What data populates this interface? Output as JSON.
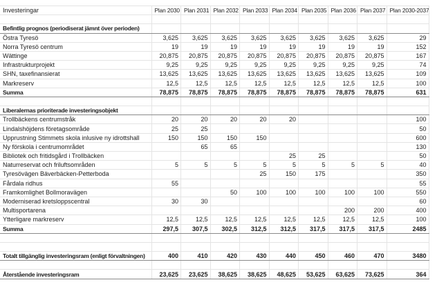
{
  "colors": {
    "bg": "#ffffff",
    "grid": "#e4e4e4",
    "border": "#8a8a8a",
    "text": "#1d1d1d"
  },
  "table": {
    "columns": [
      "Investeringar",
      "Plan 2030",
      "Plan 2031",
      "Plan 2032",
      "Plan 2033",
      "Plan 2034",
      "Plan 2035",
      "Plan 2036",
      "Plan 2037",
      "Plan 2030-2037"
    ],
    "rows": [
      {
        "style": "empty",
        "label": "",
        "values": [
          "",
          "",
          "",
          "",
          "",
          "",
          "",
          "",
          ""
        ]
      },
      {
        "style": "section",
        "label": "Befintlig prognos (periodiserat jämnt över perioden)",
        "values": [
          "",
          "",
          "",
          "",
          "",
          "",
          "",
          "",
          ""
        ]
      },
      {
        "style": "",
        "label": "Östra Tyresö",
        "values": [
          "3,625",
          "3,625",
          "3,625",
          "3,625",
          "3,625",
          "3,625",
          "3,625",
          "3,625",
          "29"
        ]
      },
      {
        "style": "",
        "label": "Norra Tyresö centrum",
        "values": [
          "19",
          "19",
          "19",
          "19",
          "19",
          "19",
          "19",
          "19",
          "152"
        ]
      },
      {
        "style": "",
        "label": "Wättinge",
        "values": [
          "20,875",
          "20,875",
          "20,875",
          "20,875",
          "20,875",
          "20,875",
          "20,875",
          "20,875",
          "167"
        ]
      },
      {
        "style": "",
        "label": "Infrastrukturprojekt",
        "values": [
          "9,25",
          "9,25",
          "9,25",
          "9,25",
          "9,25",
          "9,25",
          "9,25",
          "9,25",
          "74"
        ]
      },
      {
        "style": "",
        "label": "SHN, taxefinansierat",
        "values": [
          "13,625",
          "13,625",
          "13,625",
          "13,625",
          "13,625",
          "13,625",
          "13,625",
          "13,625",
          "109"
        ]
      },
      {
        "style": "",
        "label": "Markreserv",
        "values": [
          "12,5",
          "12,5",
          "12,5",
          "12,5",
          "12,5",
          "12,5",
          "12,5",
          "12,5",
          "100"
        ]
      },
      {
        "style": "total",
        "label": "Summa",
        "values": [
          "78,875",
          "78,875",
          "78,875",
          "78,875",
          "78,875",
          "78,875",
          "78,875",
          "78,875",
          "631"
        ]
      },
      {
        "style": "empty",
        "label": "",
        "values": [
          "",
          "",
          "",
          "",
          "",
          "",
          "",
          "",
          ""
        ]
      },
      {
        "style": "section",
        "label": "Liberalernas prioriterade investeringsobjekt",
        "values": [
          "",
          "",
          "",
          "",
          "",
          "",
          "",
          "",
          ""
        ]
      },
      {
        "style": "",
        "label": "Trollbäckens centrumstråk",
        "values": [
          "20",
          "20",
          "20",
          "20",
          "20",
          "",
          "",
          "",
          "100"
        ]
      },
      {
        "style": "",
        "label": "Lindalshöjdens företagsområde",
        "values": [
          "25",
          "25",
          "",
          "",
          "",
          "",
          "",
          "",
          "50"
        ]
      },
      {
        "style": "",
        "label": "Upprustning Stimmets skola inlusive ny idrottshall",
        "values": [
          "150",
          "150",
          "150",
          "150",
          "",
          "",
          "",
          "",
          "600"
        ]
      },
      {
        "style": "",
        "label": "Ny förskola i centrumområdet",
        "values": [
          "",
          "65",
          "65",
          "",
          "",
          "",
          "",
          "",
          "130"
        ]
      },
      {
        "style": "",
        "label": "Bibliotek och fritidsgård i Trollbäcken",
        "values": [
          "",
          "",
          "",
          "",
          "25",
          "25",
          "",
          "",
          "50"
        ]
      },
      {
        "style": "",
        "label": "Naturreservat och friluftsområden",
        "values": [
          "5",
          "5",
          "5",
          "5",
          "5",
          "5",
          "5",
          "5",
          "40"
        ]
      },
      {
        "style": "",
        "label": "Tyresövägen Bäverbäcken-Petterboda",
        "values": [
          "",
          "",
          "",
          "25",
          "150",
          "175",
          "",
          "",
          "350"
        ]
      },
      {
        "style": "",
        "label": "Fårdala ridhus",
        "values": [
          "55",
          "",
          "",
          "",
          "",
          "",
          "",
          "",
          "55"
        ]
      },
      {
        "style": "",
        "label": "Framkomlighet Bollmoravägen",
        "values": [
          "",
          "",
          "50",
          "100",
          "100",
          "100",
          "100",
          "100",
          "550"
        ]
      },
      {
        "style": "",
        "label": "Moderniserad kretsloppscentral",
        "values": [
          "30",
          "30",
          "",
          "",
          "",
          "",
          "",
          "",
          "60"
        ]
      },
      {
        "style": "",
        "label": "Multisportarena",
        "values": [
          "",
          "",
          "",
          "",
          "",
          "",
          "200",
          "200",
          "400"
        ]
      },
      {
        "style": "",
        "label": "Ytterligare markreserv",
        "values": [
          "12,5",
          "12,5",
          "12,5",
          "12,5",
          "12,5",
          "12,5",
          "12,5",
          "12,5",
          "100"
        ]
      },
      {
        "style": "total",
        "label": "Summa",
        "values": [
          "297,5",
          "307,5",
          "302,5",
          "312,5",
          "312,5",
          "317,5",
          "317,5",
          "317,5",
          "2485"
        ]
      },
      {
        "style": "empty",
        "label": "",
        "values": [
          "",
          "",
          "",
          "",
          "",
          "",
          "",
          "",
          ""
        ]
      },
      {
        "style": "empty",
        "label": "",
        "values": [
          "",
          "",
          "",
          "",
          "",
          "",
          "",
          "",
          ""
        ]
      },
      {
        "style": "total",
        "label": "Totalt tillgänglig investeringsram (enligt förvaltningen)",
        "values": [
          "400",
          "410",
          "420",
          "430",
          "440",
          "450",
          "460",
          "470",
          "3480"
        ]
      },
      {
        "style": "empty",
        "label": "",
        "values": [
          "",
          "",
          "",
          "",
          "",
          "",
          "",
          "",
          ""
        ]
      },
      {
        "style": "total",
        "label": "Återstående investeringsram",
        "values": [
          "23,625",
          "23,625",
          "38,625",
          "38,625",
          "48,625",
          "53,625",
          "63,625",
          "73,625",
          "364"
        ]
      }
    ]
  }
}
